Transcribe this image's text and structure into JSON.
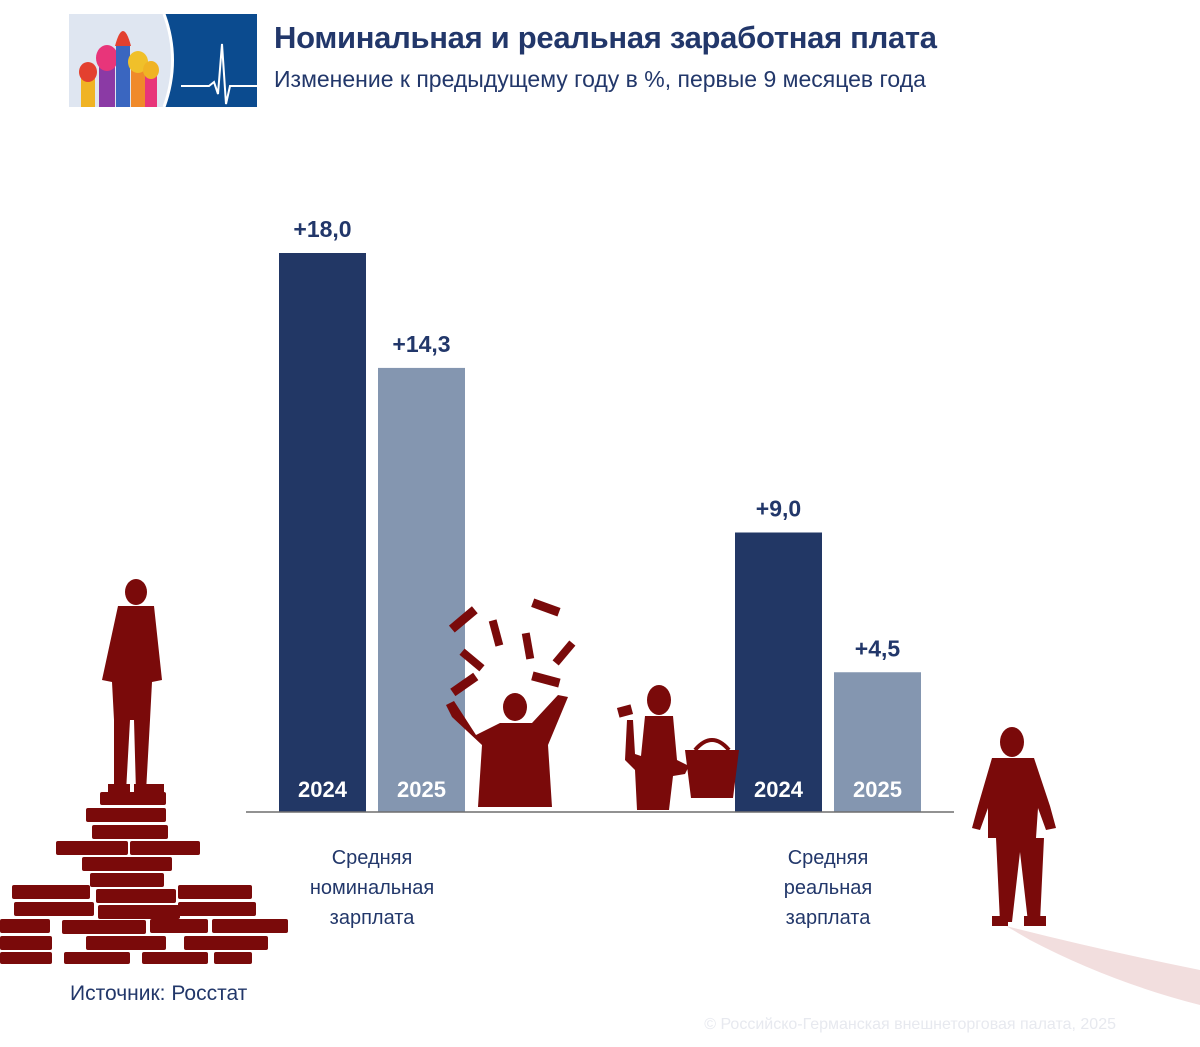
{
  "header": {
    "title": "Номинальная и реальная заработная плата",
    "subtitle": "Изменение к предыдущему году в %, первые 9 месяцев года"
  },
  "chart_data": {
    "type": "bar",
    "categories": [
      "Средняя номинальная зарплата",
      "Средняя реальная зарплата"
    ],
    "category_label_lines": [
      [
        "Средняя",
        "номинальная",
        "зарплата"
      ],
      [
        "Средняя",
        "реальная",
        "зарплата"
      ]
    ],
    "series": [
      {
        "name": "2024",
        "values": [
          18.0,
          9.0
        ],
        "labels": [
          "+18,0",
          "+9,0"
        ],
        "color": "#223765"
      },
      {
        "name": "2025",
        "values": [
          14.3,
          4.5
        ],
        "labels": [
          "+14,3",
          "+4,5"
        ],
        "color": "#8496b0"
      }
    ],
    "ylim": [
      0,
      18
    ],
    "grid": false,
    "legend": "none"
  },
  "footer": {
    "source": "Источник: Росстат",
    "copyright": "© Российско-Германская внешнеторговая палата, 2025"
  },
  "colors": {
    "title": "#22376a",
    "silhouette": "#7a0a0a",
    "logo_blue": "#0b4b8f"
  }
}
